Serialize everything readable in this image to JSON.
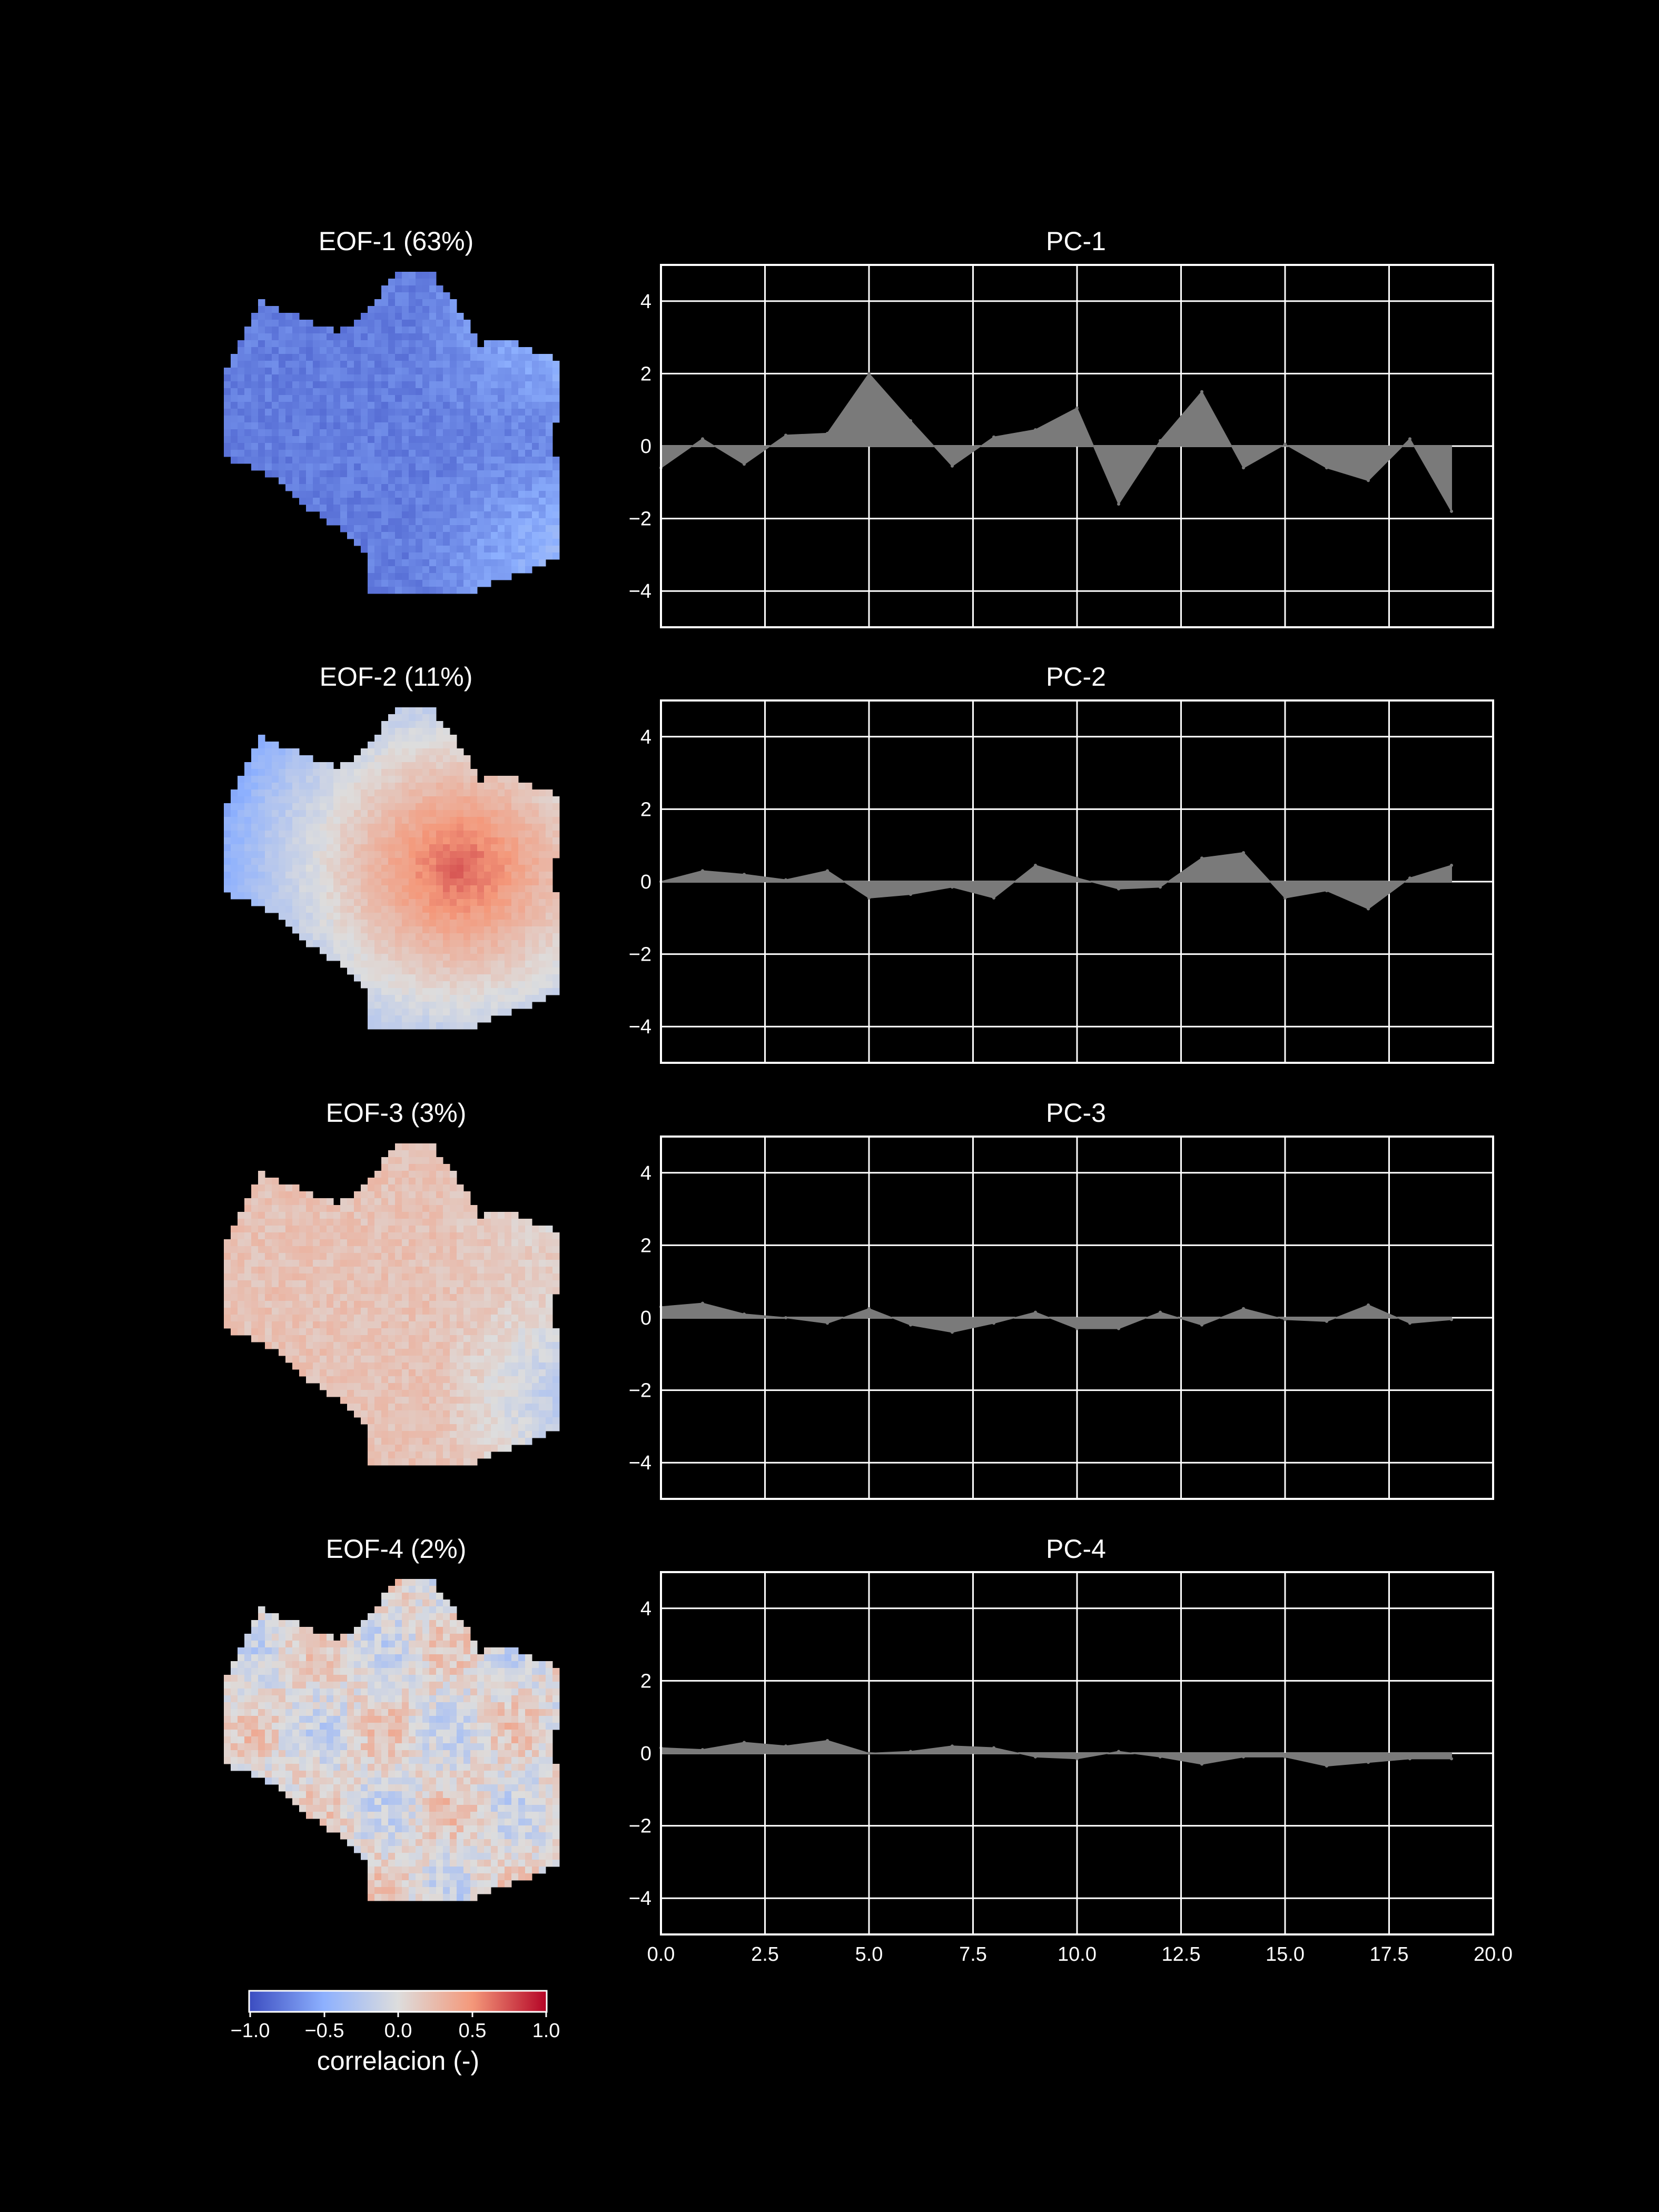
{
  "colors": {
    "background": "#000000",
    "text": "#ffffff",
    "grid": "#ffffff",
    "fill": "#7a7a7a",
    "cmap_neg": "#3b4cc0",
    "cmap_mid": "#dddddd",
    "cmap_pos": "#b40426"
  },
  "colorbar": {
    "label": "correlacion (-)",
    "ticks": [
      "−1.0",
      "−0.5",
      "0.0",
      "0.5",
      "1.0"
    ],
    "range": [
      -1.0,
      1.0
    ],
    "cmap": "coolwarm"
  },
  "maps": [
    {
      "title": "EOF-1 (63%)",
      "mean": -0.75,
      "pattern": "east-light",
      "noise": 0.08,
      "scale": 0.35
    },
    {
      "title": "EOF-2 (11%)",
      "mean": 0.05,
      "pattern": "central-high",
      "noise": 0.06,
      "scale": 0.7
    },
    {
      "title": "EOF-3 (3%)",
      "mean": 0.05,
      "pattern": "east-negative",
      "noise": 0.09,
      "scale": 0.3
    },
    {
      "title": "EOF-4 (2%)",
      "mean": 0.02,
      "pattern": "speckle",
      "noise": 0.18,
      "scale": 0.2
    }
  ],
  "chart_data": [
    {
      "type": "area",
      "title": "PC-1",
      "x": [
        0,
        1,
        2,
        3,
        4,
        5,
        6,
        7,
        8,
        9,
        10,
        11,
        12,
        13,
        14,
        15,
        16,
        17,
        18,
        19
      ],
      "y": [
        -0.6,
        0.2,
        -0.5,
        0.3,
        0.35,
        2.0,
        0.7,
        -0.55,
        0.25,
        0.45,
        1.05,
        -1.6,
        0.15,
        1.5,
        -0.6,
        0.05,
        -0.6,
        -0.95,
        0.2,
        -1.8
      ],
      "xlim": [
        0,
        20
      ],
      "ylim": [
        -5,
        5
      ],
      "xticks": [
        "0.0",
        "2.5",
        "5.0",
        "7.5",
        "10.0",
        "12.5",
        "15.0",
        "17.5",
        "20.0"
      ],
      "yticks": [
        "4",
        "2",
        "0",
        "−2",
        "−4"
      ],
      "grid": true
    },
    {
      "type": "area",
      "title": "PC-2",
      "x": [
        0,
        1,
        2,
        3,
        4,
        5,
        6,
        7,
        8,
        9,
        10,
        11,
        12,
        13,
        14,
        15,
        16,
        17,
        18,
        19
      ],
      "y": [
        0.0,
        0.3,
        0.2,
        0.05,
        0.3,
        -0.45,
        -0.35,
        -0.15,
        -0.45,
        0.45,
        0.1,
        -0.2,
        -0.15,
        0.65,
        0.8,
        -0.45,
        -0.25,
        -0.75,
        0.1,
        0.45
      ],
      "xlim": [
        0,
        20
      ],
      "ylim": [
        -5,
        5
      ],
      "xticks": [
        "0.0",
        "2.5",
        "5.0",
        "7.5",
        "10.0",
        "12.5",
        "15.0",
        "17.5",
        "20.0"
      ],
      "yticks": [
        "4",
        "2",
        "0",
        "−2",
        "−4"
      ],
      "grid": true
    },
    {
      "type": "area",
      "title": "PC-3",
      "x": [
        0,
        1,
        2,
        3,
        4,
        5,
        6,
        7,
        8,
        9,
        10,
        11,
        12,
        13,
        14,
        15,
        16,
        17,
        18,
        19
      ],
      "y": [
        0.3,
        0.4,
        0.1,
        0.0,
        -0.15,
        0.25,
        -0.2,
        -0.4,
        -0.15,
        0.15,
        -0.3,
        -0.3,
        0.15,
        -0.2,
        0.25,
        -0.05,
        -0.1,
        0.35,
        -0.15,
        -0.05
      ],
      "xlim": [
        0,
        20
      ],
      "ylim": [
        -5,
        5
      ],
      "xticks": [
        "0.0",
        "2.5",
        "5.0",
        "7.5",
        "10.0",
        "12.5",
        "15.0",
        "17.5",
        "20.0"
      ],
      "yticks": [
        "4",
        "2",
        "0",
        "−2",
        "−4"
      ],
      "grid": true
    },
    {
      "type": "area",
      "title": "PC-4",
      "x": [
        0,
        1,
        2,
        3,
        4,
        5,
        6,
        7,
        8,
        9,
        10,
        11,
        12,
        13,
        14,
        15,
        16,
        17,
        18,
        19
      ],
      "y": [
        0.15,
        0.1,
        0.3,
        0.2,
        0.35,
        0.0,
        0.05,
        0.2,
        0.15,
        -0.1,
        -0.15,
        0.05,
        -0.1,
        -0.3,
        -0.1,
        -0.1,
        -0.35,
        -0.25,
        -0.15,
        -0.15
      ],
      "xlim": [
        0,
        20
      ],
      "ylim": [
        -5,
        5
      ],
      "xticks": [
        "0.0",
        "2.5",
        "5.0",
        "7.5",
        "10.0",
        "12.5",
        "15.0",
        "17.5",
        "20.0"
      ],
      "yticks": [
        "4",
        "2",
        "0",
        "−2",
        "−4"
      ],
      "grid": true
    }
  ]
}
